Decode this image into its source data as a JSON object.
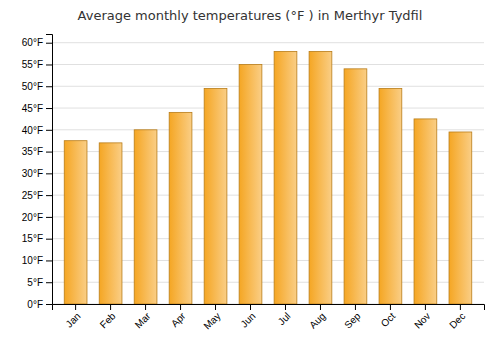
{
  "chart_data": {
    "type": "bar",
    "title": "Average monthly temperatures (°F ) in Merthyr Tydfil",
    "categories": [
      "Jan",
      "Feb",
      "Mar",
      "Apr",
      "May",
      "Jun",
      "Jul",
      "Aug",
      "Sep",
      "Oct",
      "Nov",
      "Dec"
    ],
    "values": [
      37.5,
      37.0,
      40.0,
      44.0,
      49.5,
      55.0,
      58.0,
      58.0,
      54.0,
      49.5,
      42.5,
      39.5
    ],
    "color": "#F5A623",
    "ylim": [
      0,
      62
    ],
    "yticks": [
      {
        "value": 0,
        "label": "0°F"
      },
      {
        "value": 5,
        "label": "5°F"
      },
      {
        "value": 10,
        "label": "10°F"
      },
      {
        "value": 15,
        "label": "15°F"
      },
      {
        "value": 20,
        "label": "20°F"
      },
      {
        "value": 25,
        "label": "25°F"
      },
      {
        "value": 30,
        "label": "30°F"
      },
      {
        "value": 35,
        "label": "35°F"
      },
      {
        "value": 40,
        "label": "40°F"
      },
      {
        "value": 45,
        "label": "45°F"
      },
      {
        "value": 50,
        "label": "50°F"
      },
      {
        "value": 55,
        "label": "55°F"
      },
      {
        "value": 60,
        "label": "60°F"
      }
    ],
    "grid": true
  }
}
